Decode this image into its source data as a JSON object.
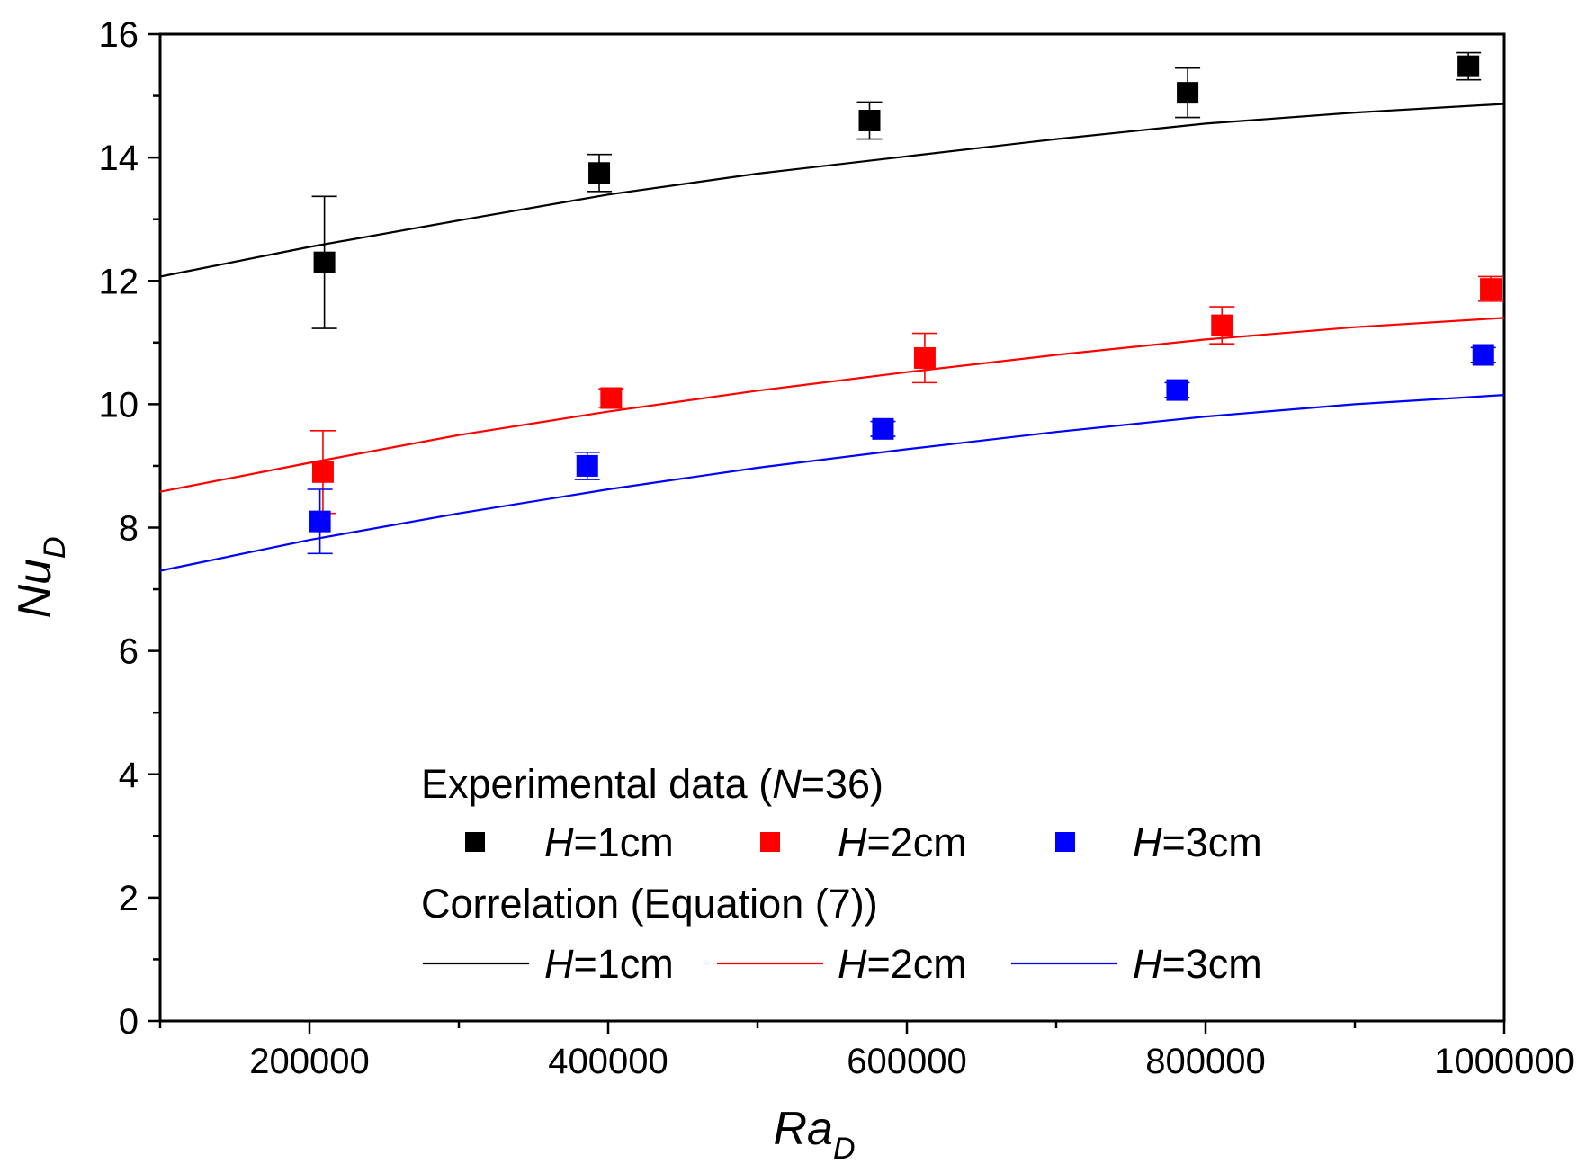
{
  "chart_data": {
    "type": "scatter",
    "xlabel": {
      "main": "Ra",
      "sub": "D"
    },
    "ylabel": {
      "main": "Nu",
      "sub": "D"
    },
    "xlim": [
      100000,
      1000000
    ],
    "ylim": [
      0,
      16
    ],
    "x_ticks": [
      "200000",
      "400000",
      "600000",
      "800000",
      "1000000"
    ],
    "y_ticks": [
      "0",
      "2",
      "4",
      "6",
      "8",
      "10",
      "12",
      "14",
      "16"
    ],
    "grid": false,
    "legend_placement": "bottom-center",
    "legend": {
      "experimental_title": {
        "pre": "Experimental data (",
        "var": "N",
        "post": "=36)"
      },
      "correlation_title": "Correlation (Equation (7))",
      "var": "H",
      "entries": [
        "=1cm",
        "=2cm",
        "=3cm"
      ]
    },
    "series": [
      {
        "name": "H=1cm",
        "color": "#000000",
        "points": [
          {
            "x": 210000,
            "y": 12.3,
            "err": 1.07
          },
          {
            "x": 394000,
            "y": 13.75,
            "err": 0.3
          },
          {
            "x": 575000,
            "y": 14.6,
            "err": 0.3
          },
          {
            "x": 788000,
            "y": 15.05,
            "err": 0.4
          },
          {
            "x": 976000,
            "y": 15.48,
            "err": 0.22
          }
        ],
        "curve": [
          {
            "x": 100000,
            "y": 12.07
          },
          {
            "x": 200000,
            "y": 12.55
          },
          {
            "x": 300000,
            "y": 12.98
          },
          {
            "x": 400000,
            "y": 13.4
          },
          {
            "x": 500000,
            "y": 13.74
          },
          {
            "x": 600000,
            "y": 14.02
          },
          {
            "x": 700000,
            "y": 14.3
          },
          {
            "x": 800000,
            "y": 14.55
          },
          {
            "x": 900000,
            "y": 14.73
          },
          {
            "x": 1000000,
            "y": 14.87
          }
        ]
      },
      {
        "name": "H=2cm",
        "color": "#ff0000",
        "points": [
          {
            "x": 209000,
            "y": 8.9,
            "err": 0.67
          },
          {
            "x": 402000,
            "y": 10.1,
            "err": 0.15
          },
          {
            "x": 612000,
            "y": 10.75,
            "err": 0.4
          },
          {
            "x": 811000,
            "y": 11.28,
            "err": 0.3
          },
          {
            "x": 991000,
            "y": 11.87,
            "err": 0.2
          }
        ],
        "curve": [
          {
            "x": 100000,
            "y": 8.58
          },
          {
            "x": 200000,
            "y": 9.05
          },
          {
            "x": 300000,
            "y": 9.5
          },
          {
            "x": 400000,
            "y": 9.88
          },
          {
            "x": 500000,
            "y": 10.22
          },
          {
            "x": 600000,
            "y": 10.52
          },
          {
            "x": 700000,
            "y": 10.8
          },
          {
            "x": 800000,
            "y": 11.05
          },
          {
            "x": 900000,
            "y": 11.25
          },
          {
            "x": 1000000,
            "y": 11.4
          }
        ]
      },
      {
        "name": "H=3cm",
        "color": "#0000ff",
        "points": [
          {
            "x": 207000,
            "y": 8.1,
            "err": 0.52
          },
          {
            "x": 386000,
            "y": 9.0,
            "err": 0.22
          },
          {
            "x": 584000,
            "y": 9.6,
            "err": 0.12
          },
          {
            "x": 781000,
            "y": 10.23,
            "err": 0.12
          },
          {
            "x": 986000,
            "y": 10.8,
            "err": 0.12
          }
        ],
        "curve": [
          {
            "x": 100000,
            "y": 7.3
          },
          {
            "x": 200000,
            "y": 7.8
          },
          {
            "x": 300000,
            "y": 8.23
          },
          {
            "x": 400000,
            "y": 8.62
          },
          {
            "x": 500000,
            "y": 8.97
          },
          {
            "x": 600000,
            "y": 9.27
          },
          {
            "x": 700000,
            "y": 9.55
          },
          {
            "x": 800000,
            "y": 9.8
          },
          {
            "x": 900000,
            "y": 10.0
          },
          {
            "x": 1000000,
            "y": 10.15
          }
        ]
      }
    ]
  }
}
